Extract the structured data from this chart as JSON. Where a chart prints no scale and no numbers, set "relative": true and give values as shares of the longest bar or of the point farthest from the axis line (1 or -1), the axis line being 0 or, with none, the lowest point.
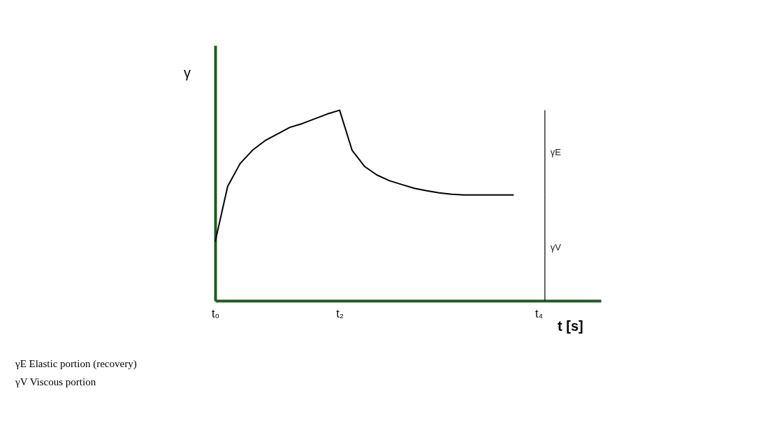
{
  "chart_data": {
    "type": "line",
    "relative": true,
    "ylabel": "γ",
    "xlabel": "t [s]",
    "categories": [
      "t₀",
      null,
      null,
      null,
      null,
      null,
      null,
      null,
      null,
      null,
      "t₂",
      null,
      null,
      null,
      null,
      null,
      null,
      null,
      null,
      null,
      null,
      null,
      null,
      null,
      null,
      null,
      "t₄",
      null,
      null,
      null,
      null,
      null
    ],
    "values": [
      0.31,
      0.6,
      0.72,
      0.79,
      0.84,
      0.875,
      0.91,
      0.93,
      0.955,
      0.98,
      1.0,
      0.79,
      0.705,
      0.66,
      0.63,
      0.61,
      0.59,
      0.577,
      0.566,
      0.559,
      0.555,
      0.555,
      0.555,
      0.555,
      0.555,
      null,
      null,
      null,
      null,
      null,
      null,
      null
    ],
    "color": "#000000",
    "annotations": [
      "γE",
      "γV",
      "γE Elastic portion (recovery)",
      "γV  Viscous portion"
    ],
    "grid": false,
    "marker": "none"
  }
}
